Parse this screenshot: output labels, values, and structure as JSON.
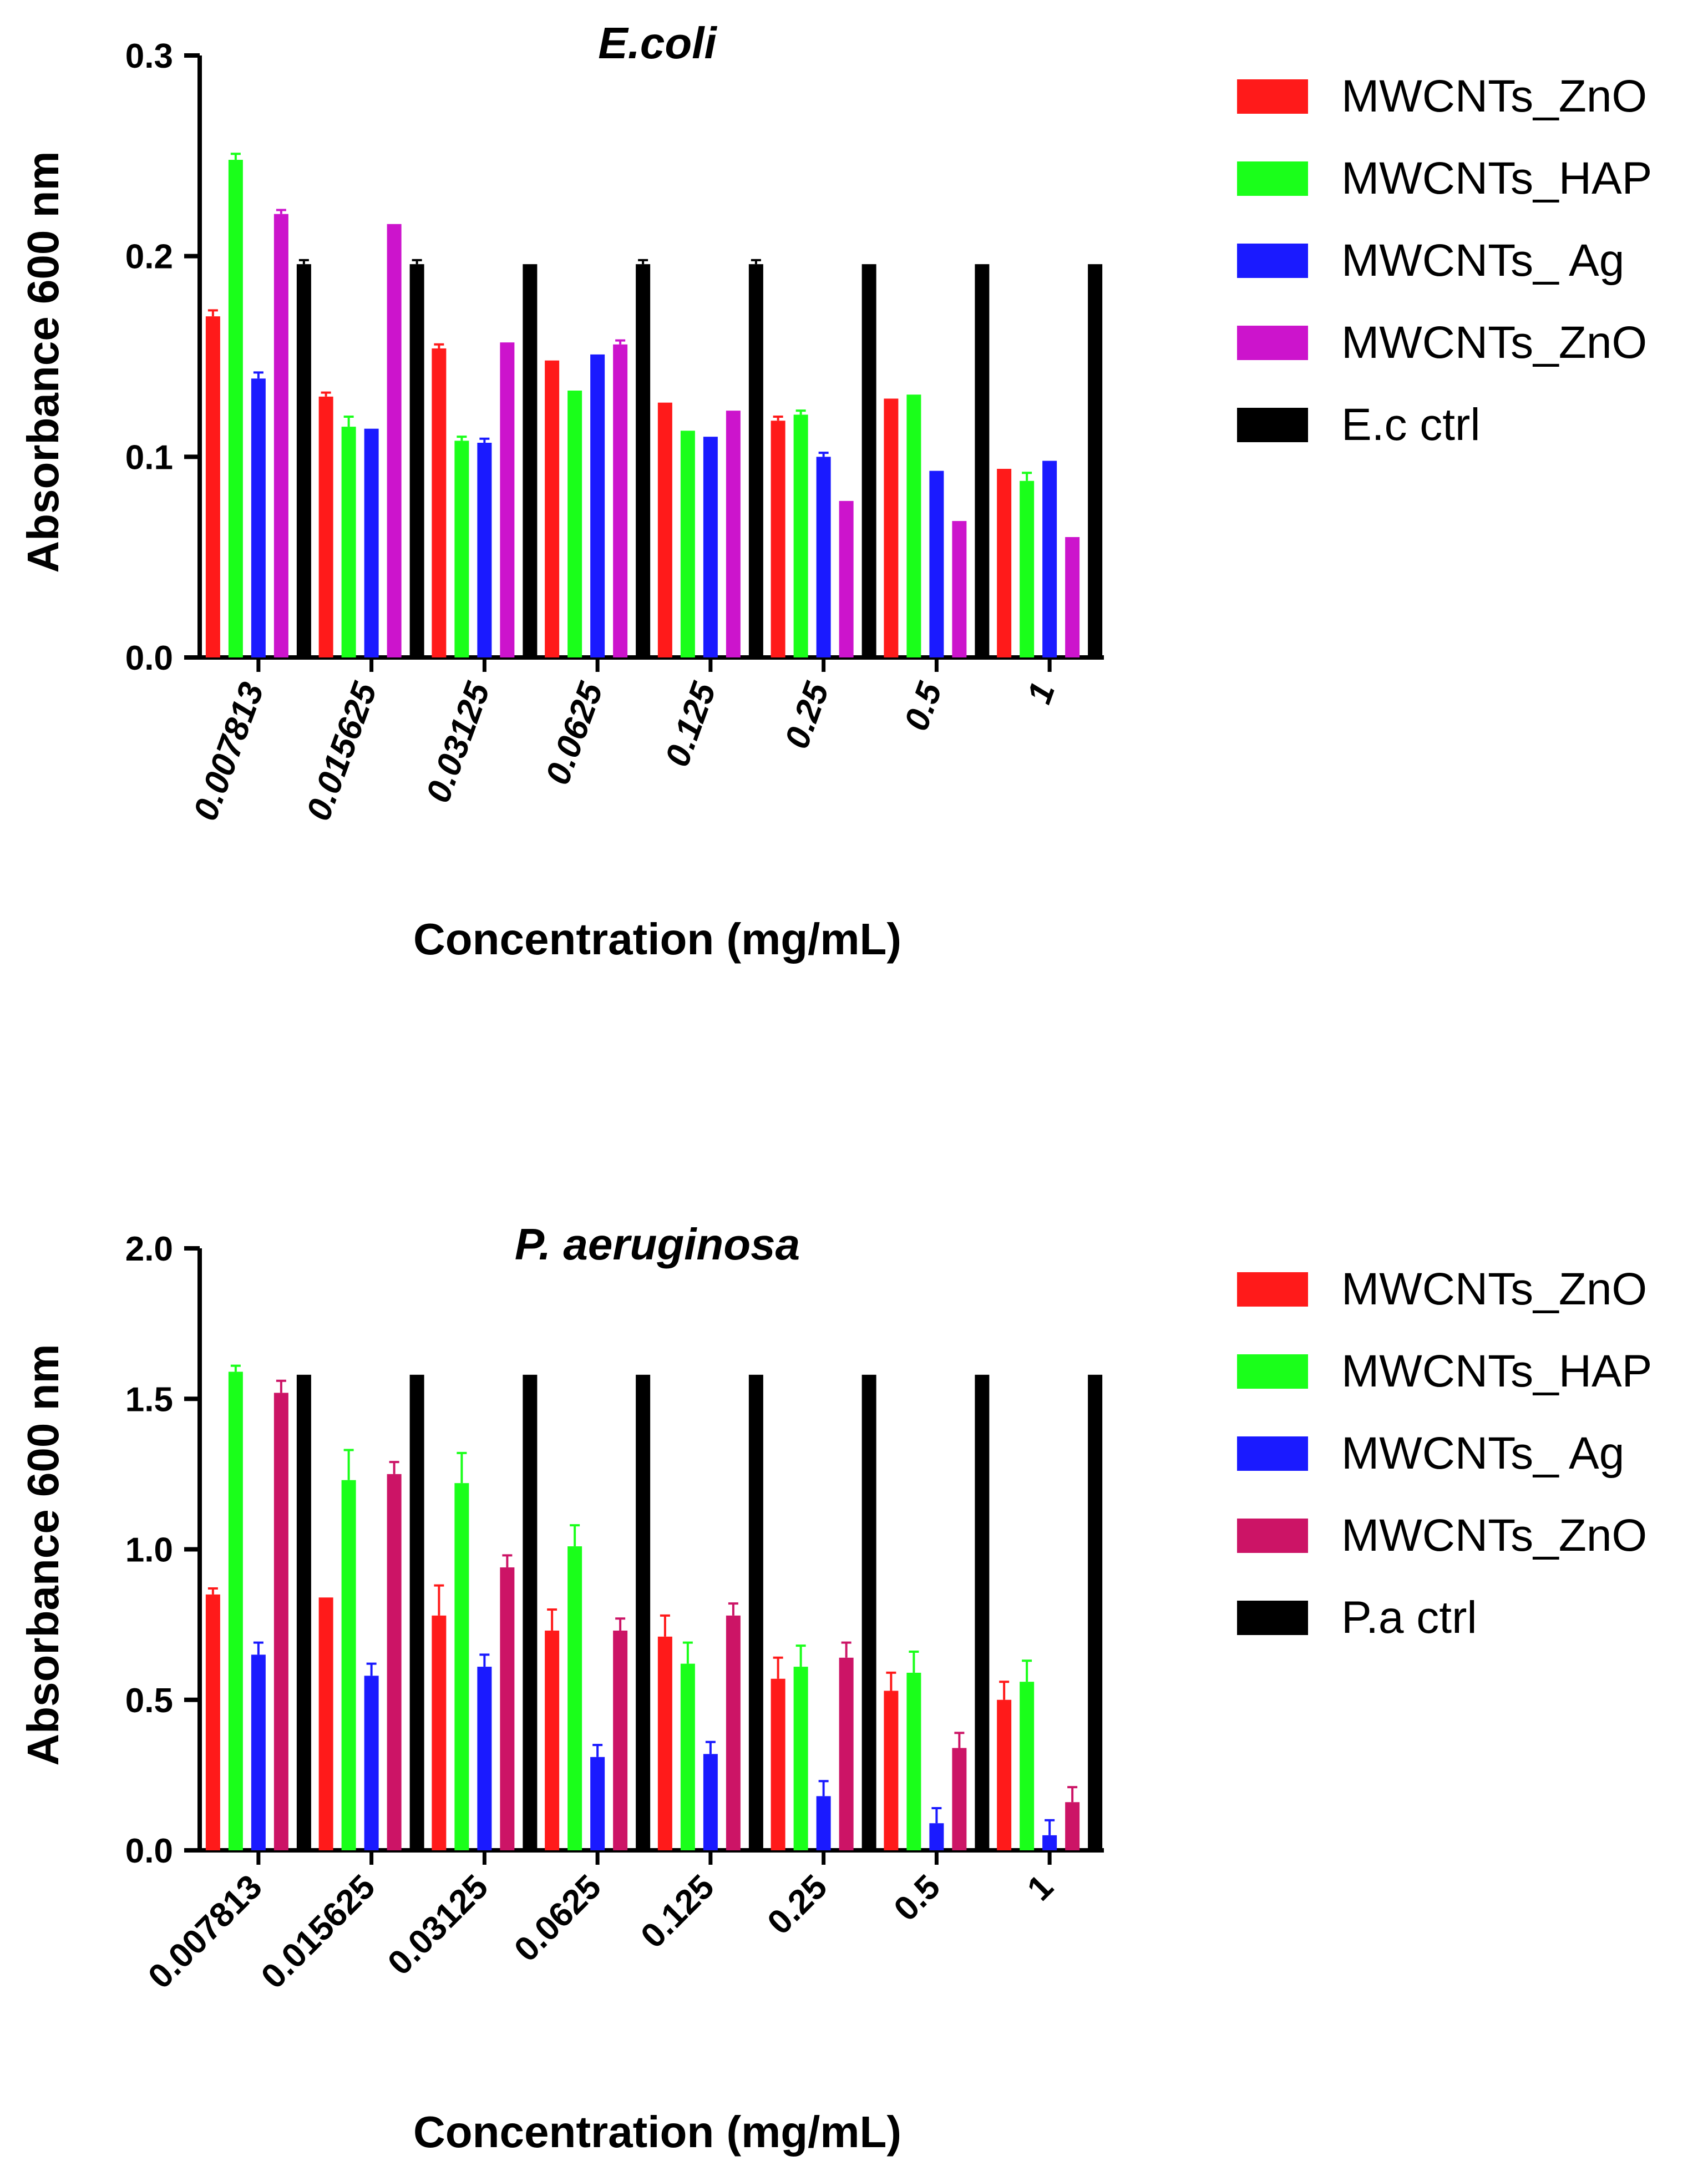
{
  "chart_data": [
    {
      "type": "bar",
      "title": "E.coli",
      "xlabel": "Concentration (mg/mL)",
      "ylabel": "Absorbance 600 nm",
      "ylim": [
        0,
        0.3
      ],
      "yticks": [
        "0.0",
        "0.1",
        "0.2",
        "0.3"
      ],
      "categories": [
        "0.007813",
        "0.015625",
        "0.03125",
        "0.0625",
        "0.125",
        "0.25",
        "0.5",
        "1"
      ],
      "legend_position": "right",
      "series": [
        {
          "name": "MWCNTs_ZnO",
          "color": "#ff1a1a",
          "values": [
            0.17,
            0.13,
            0.154,
            0.148,
            0.127,
            0.118,
            0.129,
            0.094
          ],
          "errors": [
            0.003,
            0.002,
            0.002,
            0.0,
            0.0,
            0.002,
            0.0,
            0.0
          ]
        },
        {
          "name": "MWCNTs_HAP",
          "color": "#1aff1a",
          "values": [
            0.248,
            0.115,
            0.108,
            0.133,
            0.113,
            0.121,
            0.131,
            0.088
          ],
          "errors": [
            0.003,
            0.005,
            0.002,
            0.0,
            0.0,
            0.002,
            0.0,
            0.004
          ]
        },
        {
          "name": "MWCNTs_ Ag",
          "color": "#1a1aff",
          "values": [
            0.139,
            0.114,
            0.107,
            0.151,
            0.11,
            0.1,
            0.093,
            0.098
          ],
          "errors": [
            0.003,
            0.0,
            0.002,
            0.0,
            0.0,
            0.002,
            0.0,
            0.0
          ]
        },
        {
          "name": "MWCNTs_ZnO",
          "color": "#cc14cc",
          "values": [
            0.221,
            0.216,
            0.157,
            0.156,
            0.123,
            0.078,
            0.068,
            0.06
          ],
          "errors": [
            0.002,
            0.0,
            0.0,
            0.002,
            0.0,
            0.0,
            0.0,
            0.0
          ]
        },
        {
          "name": "E.c ctrl",
          "color": "#000000",
          "values": [
            0.196,
            0.196,
            0.196,
            0.196,
            0.196,
            0.196,
            0.196,
            0.196
          ],
          "errors": [
            0.002,
            0.002,
            0.0,
            0.002,
            0.002,
            0.0,
            0.0,
            0.0
          ]
        }
      ]
    },
    {
      "type": "bar",
      "title": "P. aeruginosa",
      "xlabel": "Concentration (mg/mL)",
      "ylabel": "Absorbance 600 nm",
      "ylim": [
        0,
        2.0
      ],
      "yticks": [
        "0.0",
        "0.5",
        "1.0",
        "1.5",
        "2.0"
      ],
      "categories": [
        "0.007813",
        "0.015625",
        "0.03125",
        "0.0625",
        "0.125",
        "0.25",
        "0.5",
        "1"
      ],
      "legend_position": "right",
      "series": [
        {
          "name": "MWCNTs_ZnO",
          "color": "#ff1a1a",
          "values": [
            0.85,
            0.84,
            0.78,
            0.73,
            0.71,
            0.57,
            0.53,
            0.5
          ],
          "errors": [
            0.02,
            0.0,
            0.1,
            0.07,
            0.07,
            0.07,
            0.06,
            0.06
          ]
        },
        {
          "name": "MWCNTs_HAP",
          "color": "#1aff1a",
          "values": [
            1.59,
            1.23,
            1.22,
            1.01,
            0.62,
            0.61,
            0.59,
            0.56
          ],
          "errors": [
            0.02,
            0.1,
            0.1,
            0.07,
            0.07,
            0.07,
            0.07,
            0.07
          ]
        },
        {
          "name": "MWCNTs_ Ag",
          "color": "#1a1aff",
          "values": [
            0.65,
            0.58,
            0.61,
            0.31,
            0.32,
            0.18,
            0.09,
            0.05
          ],
          "errors": [
            0.04,
            0.04,
            0.04,
            0.04,
            0.04,
            0.05,
            0.05,
            0.05
          ]
        },
        {
          "name": "MWCNTs_ZnO",
          "color": "#cc1466",
          "values": [
            1.52,
            1.25,
            0.94,
            0.73,
            0.78,
            0.64,
            0.34,
            0.16
          ],
          "errors": [
            0.04,
            0.04,
            0.04,
            0.04,
            0.04,
            0.05,
            0.05,
            0.05
          ]
        },
        {
          "name": "P.a ctrl",
          "color": "#000000",
          "values": [
            1.58,
            1.58,
            1.58,
            1.58,
            1.58,
            1.58,
            1.58,
            1.58
          ],
          "errors": [
            0,
            0,
            0,
            0,
            0,
            0,
            0,
            0
          ]
        }
      ]
    }
  ]
}
